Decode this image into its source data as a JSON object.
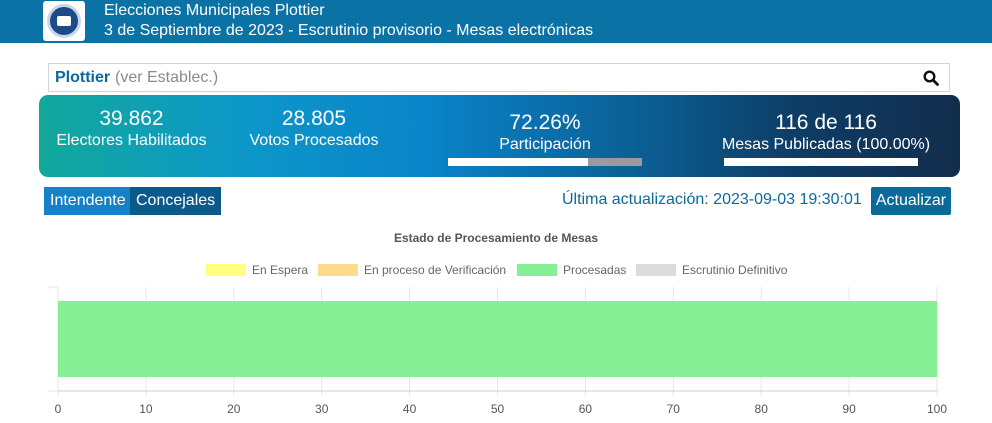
{
  "header": {
    "title": "Elecciones Municipales Plottier",
    "subtitle": "3 de Septiembre de 2023 - Escrutinio provisorio - Mesas electrónicas",
    "logo_icon": "municipal-seal-icon"
  },
  "search": {
    "city": "Plottier",
    "link": "(ver Establec.)",
    "icon": "search-icon"
  },
  "stats": {
    "electores_value": "39.862",
    "electores_label": "Electores Habilitados",
    "votos_value": "28.805",
    "votos_label": "Votos Procesados",
    "participacion_value": "72.26%",
    "participacion_label": "Participación",
    "participacion_fraction": 0.7226,
    "mesas_value": "116 de 116",
    "mesas_label": "Mesas Publicadas (100.00%)",
    "mesas_fraction": 1.0
  },
  "tabs": [
    {
      "label": "Intendente"
    },
    {
      "label": "Concejales"
    }
  ],
  "update": {
    "text": "Última actualización: 2023-09-03 19:30:01",
    "button": "Actualizar"
  },
  "colors": {
    "header": "#0b72a6",
    "accent": "#0b6a9c",
    "en_espera": "#ffff80",
    "verificacion": "#ffd98c",
    "procesadas": "#86ee95",
    "definitivo": "#dcdcdc"
  },
  "chart_data": {
    "type": "bar",
    "orientation": "horizontal",
    "stacked": true,
    "title": "Estado de Procesamiento de Mesas",
    "categories": [
      ""
    ],
    "series": [
      {
        "name": "En Espera",
        "values": [
          0
        ],
        "color": "#ffff80"
      },
      {
        "name": "En proceso de Verificación",
        "values": [
          0
        ],
        "color": "#ffd98c"
      },
      {
        "name": "Procesadas",
        "values": [
          100
        ],
        "color": "#86ee95"
      },
      {
        "name": "Escrutinio Definitivo",
        "values": [
          0
        ],
        "color": "#dcdcdc"
      }
    ],
    "xlim": [
      0,
      100
    ],
    "xticks": [
      "0",
      "10",
      "20",
      "30",
      "40",
      "50",
      "60",
      "70",
      "80",
      "90",
      "100"
    ],
    "grid": true,
    "legend": "top"
  }
}
